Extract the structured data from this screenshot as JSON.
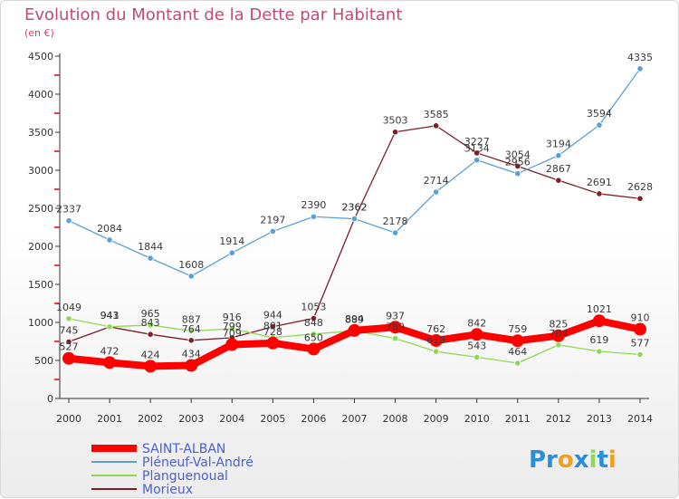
{
  "chart_data": {
    "type": "line",
    "title": "Evolution du Montant de la Dette par Habitant",
    "subtitle": "(en €)",
    "xlabel": "",
    "ylabel": "",
    "ylim": [
      0,
      4500
    ],
    "yticks": [
      0,
      500,
      1000,
      1500,
      2000,
      2500,
      3000,
      3500,
      4000,
      4500
    ],
    "grid": false,
    "legend_position": "bottom-left",
    "categories": [
      "2000",
      "2001",
      "2002",
      "2003",
      "2004",
      "2005",
      "2006",
      "2007",
      "2008",
      "2009",
      "2010",
      "2011",
      "2012",
      "2013",
      "2014"
    ],
    "series": [
      {
        "name": "SAINT-ALBAN",
        "color": "#ff0000",
        "values": [
          527,
          472,
          424,
          434,
          709,
          728,
          650,
          894,
          937,
          762,
          842,
          759,
          825,
          1021,
          910
        ]
      },
      {
        "name": "Pléneuf-Val-André",
        "color": "#5aa0d8",
        "values": [
          2337,
          2084,
          1844,
          1608,
          1914,
          2197,
          2390,
          2362,
          2178,
          2714,
          3134,
          2956,
          3194,
          3594,
          4335
        ]
      },
      {
        "name": "Planguenoual",
        "color": "#8fd855",
        "values": [
          1049,
          943,
          965,
          887,
          916,
          801,
          848,
          889,
          789,
          618,
          543,
          464,
          704,
          619,
          577
        ]
      },
      {
        "name": "Morieux",
        "color": "#7a1e28",
        "values": [
          745,
          941,
          843,
          764,
          799,
          944,
          1053,
          2362,
          3503,
          3585,
          3227,
          3054,
          2867,
          2691,
          2628
        ]
      }
    ]
  },
  "logo": {
    "part1": "Pr",
    "part2": "o",
    "part3": "x",
    "part4": "i",
    "part5": "t",
    "part6": "i"
  }
}
